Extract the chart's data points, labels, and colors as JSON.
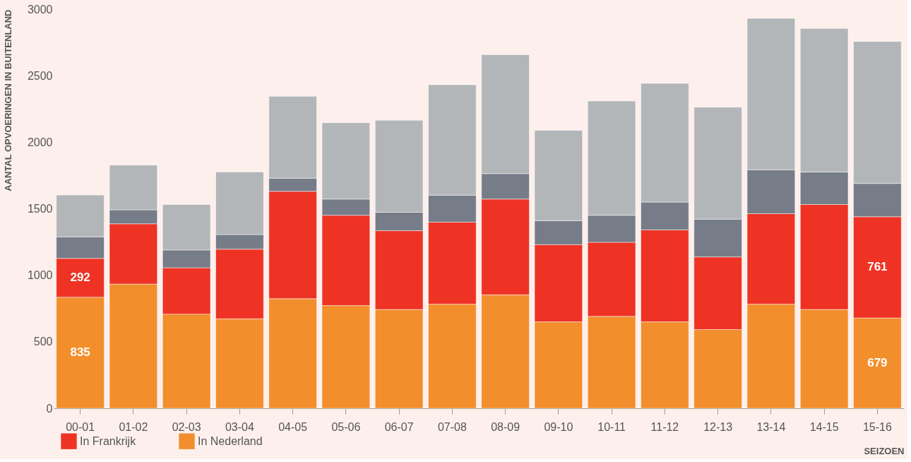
{
  "chart_data": {
    "type": "bar",
    "stacked": true,
    "xlabel": "SEIZOEN",
    "ylabel": "AANTAL OPVOERINGEN IN BUITENLAND",
    "categories": [
      "00-01",
      "01-02",
      "02-03",
      "03-04",
      "04-05",
      "05-06",
      "06-07",
      "07-08",
      "08-09",
      "09-10",
      "10-11",
      "11-12",
      "12-13",
      "13-14",
      "14-15",
      "15-16"
    ],
    "series": [
      {
        "name": "In Nederland",
        "color": "#f28e2b",
        "values": [
          835,
          934,
          708,
          673,
          824,
          772,
          743,
          783,
          853,
          650,
          691,
          650,
          592,
          783,
          743,
          679
        ],
        "value_labels": [
          "835",
          null,
          null,
          null,
          null,
          null,
          null,
          null,
          null,
          null,
          null,
          null,
          null,
          null,
          null,
          "679"
        ]
      },
      {
        "name": "In Frankrijk",
        "color": "#ee3224",
        "values": [
          292,
          453,
          348,
          523,
          807,
          679,
          592,
          616,
          720,
          580,
          557,
          691,
          546,
          680,
          789,
          761
        ],
        "value_labels": [
          "292",
          null,
          null,
          null,
          null,
          null,
          null,
          null,
          null,
          null,
          null,
          null,
          null,
          null,
          null,
          "761"
        ]
      },
      {
        "color": "#767c88",
        "values": [
          162,
          105,
          134,
          110,
          99,
          122,
          139,
          203,
          191,
          180,
          203,
          209,
          284,
          330,
          244,
          250
        ]
      },
      {
        "color": "#b3b6b9",
        "values": [
          314,
          336,
          342,
          470,
          615,
          574,
          691,
          830,
          894,
          679,
          859,
          893,
          841,
          1138,
          1079,
          1067
        ]
      }
    ],
    "ylim": [
      0,
      3000
    ],
    "yticks": [
      0,
      500,
      1000,
      1500,
      2000,
      2500,
      3000
    ],
    "grid": false,
    "legend": "bottom left"
  }
}
